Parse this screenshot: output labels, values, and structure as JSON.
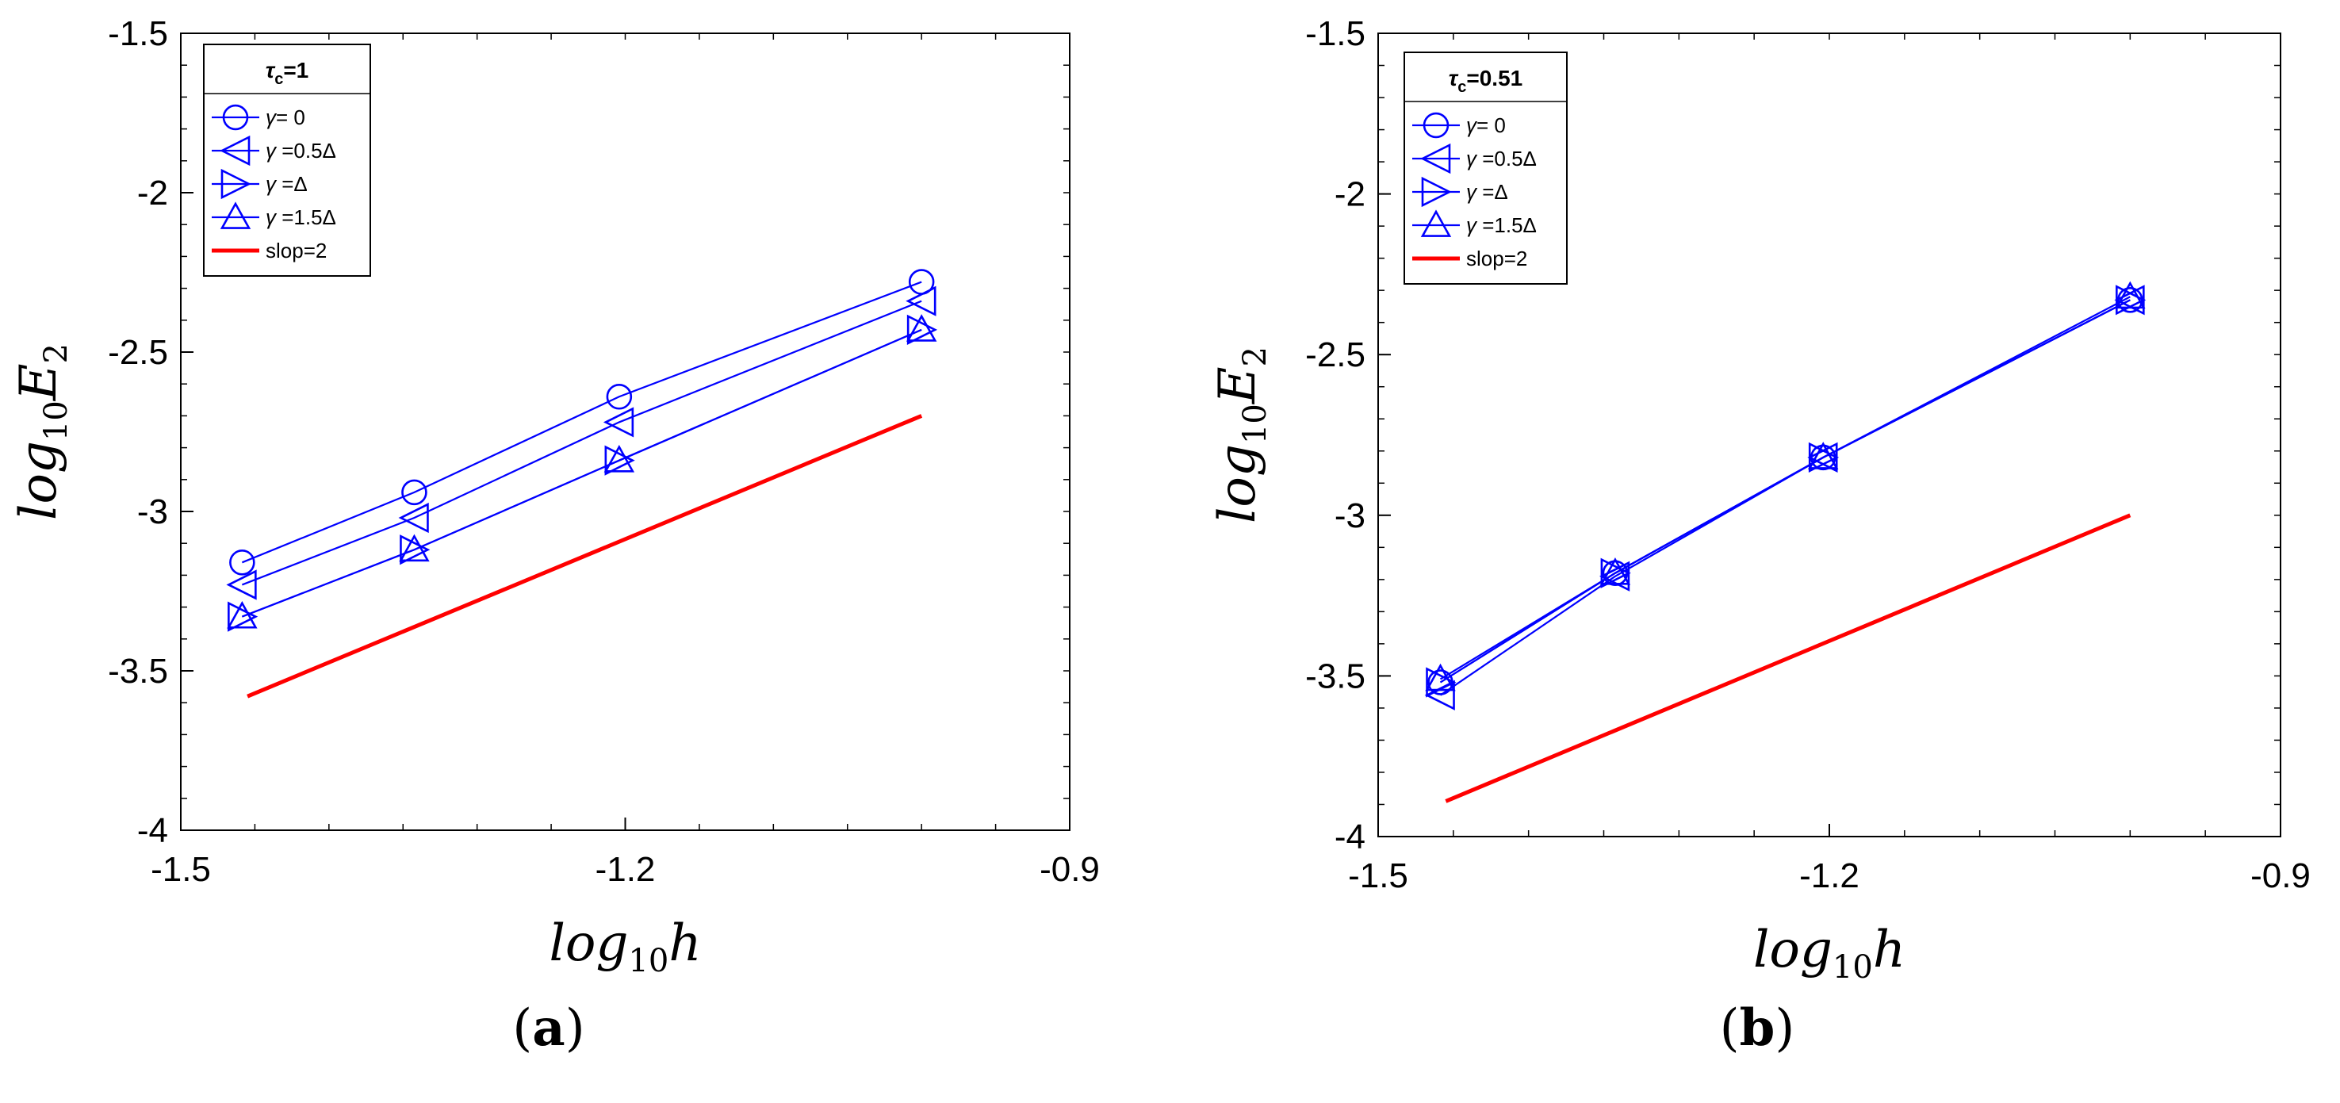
{
  "chart_data": [
    {
      "type": "line",
      "panel_label": "(a)",
      "panel_letter": "a",
      "xlabel": "log10h",
      "xlabel_parts": {
        "base": "log",
        "sub": "10",
        "var": "h"
      },
      "ylabel": "log10E2",
      "ylabel_parts": {
        "base": "log",
        "sub": "10",
        "var": "E",
        "sub2": "2"
      },
      "xlim": [
        -1.5,
        -0.9
      ],
      "ylim": [
        -4,
        -1.5
      ],
      "xticks": [
        -1.5,
        -1.2,
        -0.9
      ],
      "xtick_labels": [
        "-1.5",
        "-1.2",
        "-0.9"
      ],
      "yticks": [
        -4,
        -3.5,
        -3,
        -2.5,
        -2,
        -1.5
      ],
      "ytick_labels": [
        "-4",
        "-3.5",
        "-3",
        "-2.5",
        "-2",
        "-1.5"
      ],
      "legend": {
        "title": "τc=1",
        "title_parts": {
          "sym": "τ",
          "sub": "c",
          "rest": "=1"
        },
        "placement": "top-left",
        "entries": [
          {
            "sym": "γ",
            "text": "= 0"
          },
          {
            "sym": "γ",
            "text": " =0.5Δ"
          },
          {
            "sym": "γ",
            "text": " =Δ"
          },
          {
            "sym": "γ",
            "text": " =1.5Δ"
          },
          {
            "sym": "",
            "text": "slop=2"
          }
        ]
      },
      "x": [
        -1.4586,
        -1.3424,
        -1.2041,
        -1.0
      ],
      "series": [
        {
          "name": "γ= 0",
          "marker": "circle",
          "color": "#0000ff",
          "values": [
            -3.16,
            -2.94,
            -2.64,
            -2.28
          ]
        },
        {
          "name": "γ =0.5Δ",
          "marker": "triangle-left",
          "color": "#0000ff",
          "values": [
            -3.23,
            -3.02,
            -2.72,
            -2.34
          ]
        },
        {
          "name": "γ =Δ",
          "marker": "triangle-right",
          "color": "#0000ff",
          "values": [
            -3.33,
            -3.12,
            -2.84,
            -2.43
          ]
        },
        {
          "name": "γ =1.5Δ",
          "marker": "triangle-up",
          "color": "#0000ff",
          "values": [
            -3.33,
            -3.12,
            -2.84,
            -2.43
          ]
        },
        {
          "name": "slop=2",
          "marker": "none",
          "color": "#ff0000",
          "x": [
            -1.455,
            -1.0
          ],
          "values": [
            -3.58,
            -2.7
          ]
        }
      ]
    },
    {
      "type": "line",
      "panel_label": "(b)",
      "panel_letter": "b",
      "xlabel": "log10h",
      "xlabel_parts": {
        "base": "log",
        "sub": "10",
        "var": "h"
      },
      "ylabel": "log10E2",
      "ylabel_parts": {
        "base": "log",
        "sub": "10",
        "var": "E",
        "sub2": "2"
      },
      "xlim": [
        -1.5,
        -0.9
      ],
      "ylim": [
        -4,
        -1.5
      ],
      "xticks": [
        -1.5,
        -1.2,
        -0.9
      ],
      "xtick_labels": [
        "-1.5",
        "-1.2",
        "-0.9"
      ],
      "yticks": [
        -4,
        -3.5,
        -3,
        -2.5,
        -2,
        -1.5
      ],
      "ytick_labels": [
        "-4",
        "-3.5",
        "-3",
        "-2.5",
        "-2",
        "-1.5"
      ],
      "legend": {
        "title": "τc=0.51",
        "title_parts": {
          "sym": "τ",
          "sub": "c",
          "rest": "=0.51"
        },
        "placement": "top-left",
        "entries": [
          {
            "sym": "γ",
            "text": "= 0"
          },
          {
            "sym": "γ",
            "text": " =0.5Δ"
          },
          {
            "sym": "γ",
            "text": " =Δ"
          },
          {
            "sym": "γ",
            "text": " =1.5Δ"
          },
          {
            "sym": "",
            "text": "slop=2"
          }
        ]
      },
      "x": [
        -1.4586,
        -1.3424,
        -1.2041,
        -1.0
      ],
      "series": [
        {
          "name": "γ= 0",
          "marker": "circle",
          "color": "#0000ff",
          "values": [
            -3.52,
            -3.18,
            -2.82,
            -2.33
          ]
        },
        {
          "name": "γ =0.5Δ",
          "marker": "triangle-left",
          "color": "#0000ff",
          "values": [
            -3.56,
            -3.19,
            -2.82,
            -2.33
          ]
        },
        {
          "name": "γ =Δ",
          "marker": "triangle-right",
          "color": "#0000ff",
          "values": [
            -3.52,
            -3.18,
            -2.82,
            -2.33
          ]
        },
        {
          "name": "γ =1.5Δ",
          "marker": "triangle-up",
          "color": "#0000ff",
          "values": [
            -3.51,
            -3.18,
            -2.82,
            -2.32
          ]
        },
        {
          "name": "slop=2",
          "marker": "none",
          "color": "#ff0000",
          "x": [
            -1.455,
            -1.0
          ],
          "values": [
            -3.89,
            -3.0
          ]
        }
      ]
    }
  ]
}
